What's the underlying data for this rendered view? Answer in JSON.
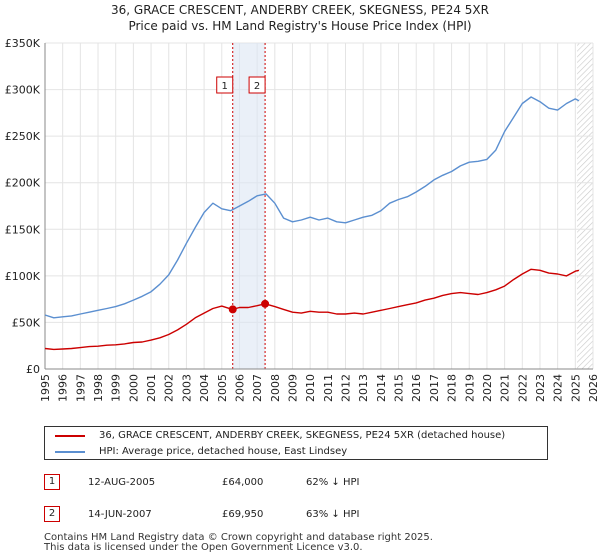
{
  "chart_data": {
    "type": "line",
    "title": "36, GRACE CRESCENT, ANDERBY CREEK, SKEGNESS, PE24 5XR",
    "subtitle": "Price paid vs. HM Land Registry's House Price Index (HPI)",
    "xlim": [
      1995,
      2026
    ],
    "ylim": [
      0,
      350000
    ],
    "x_ticks": [
      1995,
      1996,
      1997,
      1998,
      1999,
      2000,
      2001,
      2002,
      2003,
      2004,
      2005,
      2006,
      2007,
      2008,
      2009,
      2010,
      2011,
      2012,
      2013,
      2014,
      2015,
      2016,
      2017,
      2018,
      2019,
      2020,
      2021,
      2022,
      2023,
      2024,
      2025,
      2026
    ],
    "y_ticks": [
      {
        "value": 0,
        "label": "£0"
      },
      {
        "value": 50000,
        "label": "£50K"
      },
      {
        "value": 100000,
        "label": "£100K"
      },
      {
        "value": 150000,
        "label": "£150K"
      },
      {
        "value": 200000,
        "label": "£200K"
      },
      {
        "value": 250000,
        "label": "£250K"
      },
      {
        "value": 300000,
        "label": "£300K"
      },
      {
        "value": 350000,
        "label": "£350K"
      }
    ],
    "grid": true,
    "forecast_start": 2025.1,
    "series": [
      {
        "name": "36, GRACE CRESCENT, ANDERBY CREEK, SKEGNESS, PE24 5XR (detached house)",
        "color": "#cc0000",
        "x": [
          1995,
          1995.5,
          1996,
          1996.5,
          1997,
          1997.5,
          1998,
          1998.5,
          1999,
          1999.5,
          2000,
          2000.5,
          2001,
          2001.5,
          2002,
          2002.5,
          2003,
          2003.5,
          2004,
          2004.5,
          2005,
          2005.6,
          2006,
          2006.5,
          2007,
          2007.45,
          2008,
          2008.5,
          2009,
          2009.5,
          2010,
          2010.5,
          2011,
          2011.5,
          2012,
          2012.5,
          2013,
          2013.5,
          2014,
          2014.5,
          2015,
          2015.5,
          2016,
          2016.5,
          2017,
          2017.5,
          2018,
          2018.5,
          2019,
          2019.5,
          2020,
          2020.5,
          2021,
          2021.5,
          2022,
          2022.5,
          2023,
          2023.5,
          2024,
          2024.5,
          2025,
          2025.2
        ],
        "values": [
          22000,
          21000,
          21500,
          22000,
          23000,
          24000,
          24500,
          25500,
          26000,
          27000,
          28500,
          29000,
          31000,
          33500,
          37000,
          42000,
          48000,
          55000,
          60000,
          65000,
          67500,
          64000,
          66000,
          66000,
          68000,
          69950,
          67000,
          64000,
          61000,
          60000,
          62000,
          61000,
          61000,
          59000,
          59000,
          60000,
          59000,
          61000,
          63000,
          65000,
          67000,
          69000,
          71000,
          74000,
          76000,
          79000,
          81000,
          82000,
          81000,
          80000,
          82000,
          85000,
          89000,
          96000,
          102000,
          107000,
          106000,
          103000,
          102000,
          100000,
          105000,
          106000
        ]
      },
      {
        "name": "HPI: Average price, detached house, East Lindsey",
        "color": "#5b8fd0",
        "x": [
          1995,
          1995.5,
          1996,
          1996.5,
          1997,
          1997.5,
          1998,
          1998.5,
          1999,
          1999.5,
          2000,
          2000.5,
          2001,
          2001.5,
          2002,
          2002.5,
          2003,
          2003.5,
          2004,
          2004.5,
          2005,
          2005.5,
          2006,
          2006.5,
          2007,
          2007.5,
          2008,
          2008.5,
          2009,
          2009.5,
          2010,
          2010.5,
          2011,
          2011.5,
          2012,
          2012.5,
          2013,
          2013.5,
          2014,
          2014.5,
          2015,
          2015.5,
          2016,
          2016.5,
          2017,
          2017.5,
          2018,
          2018.5,
          2019,
          2019.5,
          2020,
          2020.5,
          2021,
          2021.5,
          2022,
          2022.5,
          2023,
          2023.5,
          2024,
          2024.5,
          2025,
          2025.2
        ],
        "values": [
          58000,
          55000,
          56000,
          57000,
          59000,
          61000,
          63000,
          65000,
          67000,
          70000,
          74000,
          78000,
          83000,
          91000,
          101000,
          117000,
          135000,
          152000,
          168000,
          178000,
          172000,
          170000,
          175000,
          180000,
          186000,
          188000,
          178000,
          162000,
          158000,
          160000,
          163000,
          160000,
          162000,
          158000,
          157000,
          160000,
          163000,
          165000,
          170000,
          178000,
          182000,
          185000,
          190000,
          196000,
          203000,
          208000,
          212000,
          218000,
          222000,
          223000,
          225000,
          235000,
          255000,
          270000,
          285000,
          292000,
          287000,
          280000,
          278000,
          285000,
          290000,
          288000
        ]
      }
    ],
    "annotations": [
      {
        "label": "1",
        "x": 2005.62
      },
      {
        "label": "2",
        "x": 2007.45
      }
    ],
    "sales": [
      {
        "label": "1",
        "x": 2005.62,
        "value": 64000
      },
      {
        "label": "2",
        "x": 2007.45,
        "value": 69950
      }
    ]
  },
  "title_line1": "36, GRACE CRESCENT, ANDERBY CREEK, SKEGNESS, PE24 5XR",
  "title_line2": "Price paid vs. HM Land Registry's House Price Index (HPI)",
  "legend": {
    "property_label": "36, GRACE CRESCENT, ANDERBY CREEK, SKEGNESS, PE24 5XR (detached house)",
    "hpi_label": "HPI: Average price, detached house, East Lindsey",
    "property_color": "#cc0000",
    "hpi_color": "#5b8fd0"
  },
  "transactions": [
    {
      "badge": "1",
      "date": "12-AUG-2005",
      "price": "£64,000",
      "hpi": "62% ↓ HPI"
    },
    {
      "badge": "2",
      "date": "14-JUN-2007",
      "price": "£69,950",
      "hpi": "63% ↓ HPI"
    }
  ],
  "footer_line1": "Contains HM Land Registry data © Crown copyright and database right 2025.",
  "footer_line2": "This data is licensed under the Open Government Licence v3.0."
}
